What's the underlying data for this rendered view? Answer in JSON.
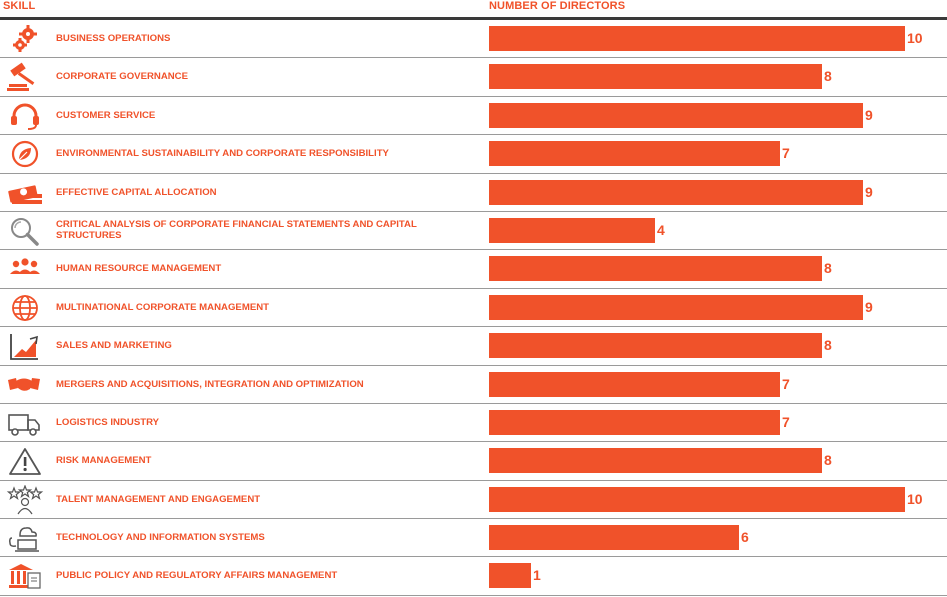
{
  "colors": {
    "accent": "#f0522a",
    "header": "#f0522a",
    "rule": "#3a3a3a"
  },
  "header": {
    "skill": "SKILL",
    "number": "NUMBER OF DIRECTORS"
  },
  "chart_data": {
    "type": "bar",
    "orientation": "horizontal",
    "xlabel": "NUMBER OF DIRECTORS",
    "ylabel": "SKILL",
    "xlim": [
      0,
      10
    ],
    "categories": [
      "BUSINESS OPERATIONS",
      "CORPORATE GOVERNANCE",
      "CUSTOMER SERVICE",
      "ENVIRONMENTAL SUSTAINABILITY AND CORPORATE RESPONSIBILITY",
      "EFFECTIVE CAPITAL ALLOCATION",
      "CRITICAL ANALYSIS OF CORPORATE FINANCIAL STATEMENTS AND CAPITAL STRUCTURES",
      "HUMAN RESOURCE MANAGEMENT",
      "MULTINATIONAL CORPORATE MANAGEMENT",
      "SALES AND MARKETING",
      "MERGERS AND ACQUISITIONS, INTEGRATION AND OPTIMIZATION",
      "LOGISTICS INDUSTRY",
      "RISK MANAGEMENT",
      "TALENT MANAGEMENT AND ENGAGEMENT",
      "TECHNOLOGY AND INFORMATION SYSTEMS",
      "PUBLIC POLICY AND REGULATORY AFFAIRS MANAGEMENT"
    ],
    "values": [
      10,
      8,
      9,
      7,
      9,
      4,
      8,
      9,
      8,
      7,
      7,
      8,
      10,
      6,
      1
    ],
    "icons": [
      "gears-icon",
      "gavel-icon",
      "headset-icon",
      "leaf-circle-icon",
      "money-stack-icon",
      "magnifier-icon",
      "people-group-icon",
      "globe-icon",
      "growth-chart-icon",
      "handshake-icon",
      "truck-icon",
      "warning-icon",
      "talent-stars-icon",
      "cloud-laptop-icon",
      "courthouse-icon"
    ]
  }
}
